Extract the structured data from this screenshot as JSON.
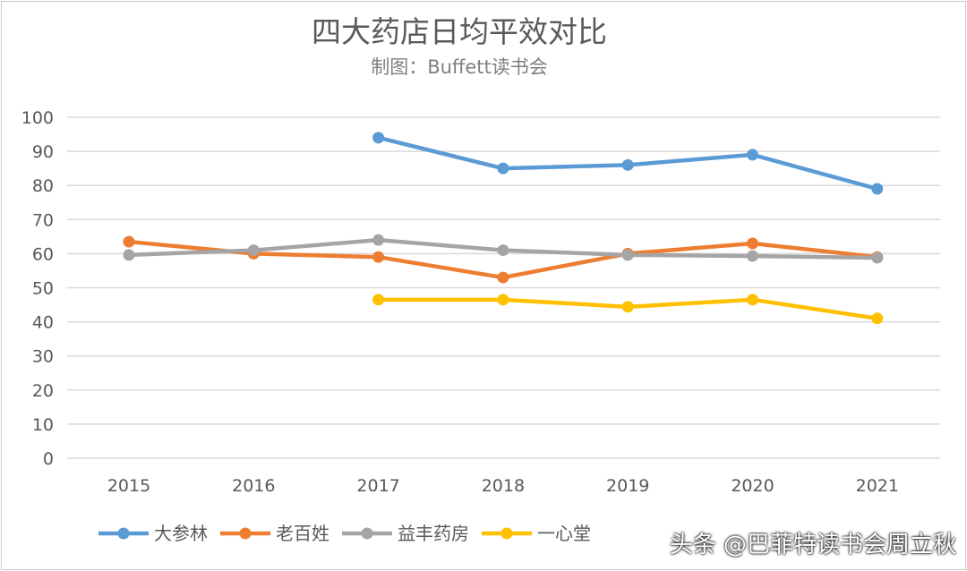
{
  "chart_data": {
    "type": "line",
    "title": "四大药店日均平效对比",
    "subtitle": "制图：Buffett读书会",
    "x": [
      "2015",
      "2016",
      "2017",
      "2018",
      "2019",
      "2020",
      "2021"
    ],
    "ylim": [
      0,
      100
    ],
    "yticks": [
      "0",
      "10",
      "20",
      "30",
      "40",
      "50",
      "60",
      "70",
      "80",
      "90",
      "100"
    ],
    "grid": true,
    "legend": "bottom",
    "series": [
      {
        "name": "大参林",
        "color": "#5b9bd5",
        "values": [
          null,
          null,
          94,
          85,
          86,
          89,
          79
        ]
      },
      {
        "name": "老百姓",
        "color": "#ed7d31",
        "values": [
          63.5,
          60,
          59,
          53,
          60,
          63,
          59
        ]
      },
      {
        "name": "益丰药房",
        "color": "#a5a5a5",
        "values": [
          59.6,
          61,
          64,
          61,
          59.6,
          59.3,
          58.8
        ]
      },
      {
        "name": "一心堂",
        "color": "#ffc000",
        "values": [
          null,
          null,
          46.5,
          46.5,
          44.4,
          46.5,
          41
        ]
      }
    ]
  },
  "watermark": "头条 @巴菲特读书会周立秋"
}
